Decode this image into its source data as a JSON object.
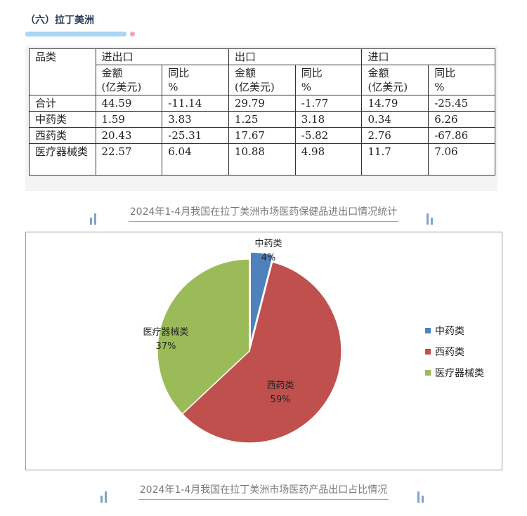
{
  "section": {
    "title": "（六）拉丁美洲"
  },
  "table": {
    "header_row1": [
      "品类",
      "进出口",
      "出口",
      "进口"
    ],
    "sub_headers": [
      [
        "金额",
        "(亿美元)"
      ],
      [
        "同比",
        "%"
      ],
      [
        "金额",
        "(亿美元)"
      ],
      [
        "同比",
        "%"
      ],
      [
        "金额",
        "(亿美元)"
      ],
      [
        "同比",
        "%"
      ]
    ],
    "rows": [
      [
        "合计",
        "44.59",
        "-11.14",
        "29.79",
        "-1.77",
        "14.79",
        "-25.45"
      ],
      [
        "中药类",
        "1.59",
        "3.83",
        "1.25",
        "3.18",
        "0.34",
        "6.26"
      ],
      [
        "西药类",
        "20.43",
        "-25.31",
        "17.67",
        "-5.82",
        "2.76",
        "-67.86"
      ],
      [
        "医疗器械类",
        "22.57",
        "6.04",
        "10.88",
        "4.98",
        "11.7",
        "7.06"
      ]
    ]
  },
  "captions": {
    "table": "2024年1-4月我国在拉丁美洲市场医药保健品进出口情况统计",
    "chart": "2024年1-4月我国在拉丁美洲市场医药产品出口占比情况"
  },
  "chart_data": {
    "type": "pie",
    "categories": [
      "中药类",
      "西药类",
      "医疗器械类"
    ],
    "values": [
      4,
      59,
      37
    ],
    "value_labels": [
      "4%",
      "59%",
      "37%"
    ],
    "colors": [
      "#4f81bd",
      "#c0504d",
      "#9bbb59"
    ],
    "exploded": [
      "中药类"
    ],
    "legend_position": "right"
  }
}
